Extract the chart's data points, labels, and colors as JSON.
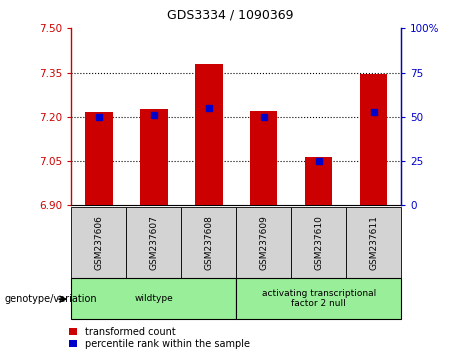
{
  "title": "GDS3334 / 1090369",
  "samples": [
    "GSM237606",
    "GSM237607",
    "GSM237608",
    "GSM237609",
    "GSM237610",
    "GSM237611"
  ],
  "bar_values": [
    7.215,
    7.225,
    7.38,
    7.22,
    7.065,
    7.345
  ],
  "percentile_values": [
    7.2,
    7.205,
    7.23,
    7.2,
    7.05,
    7.215
  ],
  "y_min": 6.9,
  "y_max": 7.5,
  "y_ticks_left": [
    6.9,
    7.05,
    7.2,
    7.35,
    7.5
  ],
  "y_ticks_right": [
    0,
    25,
    50,
    75,
    100
  ],
  "bar_color": "#cc0000",
  "blue_color": "#0000cc",
  "group_labels": [
    "wildtype",
    "activating transcriptional\nfactor 2 null"
  ],
  "group_color": "#99ee99",
  "sample_box_color": "#d3d3d3",
  "legend_red_label": "transformed count",
  "legend_blue_label": "percentile rank within the sample",
  "genotype_label": "genotype/variation",
  "bar_width": 0.5,
  "title_fontsize": 9,
  "tick_fontsize": 7.5,
  "label_fontsize": 6.5,
  "legend_fontsize": 7
}
